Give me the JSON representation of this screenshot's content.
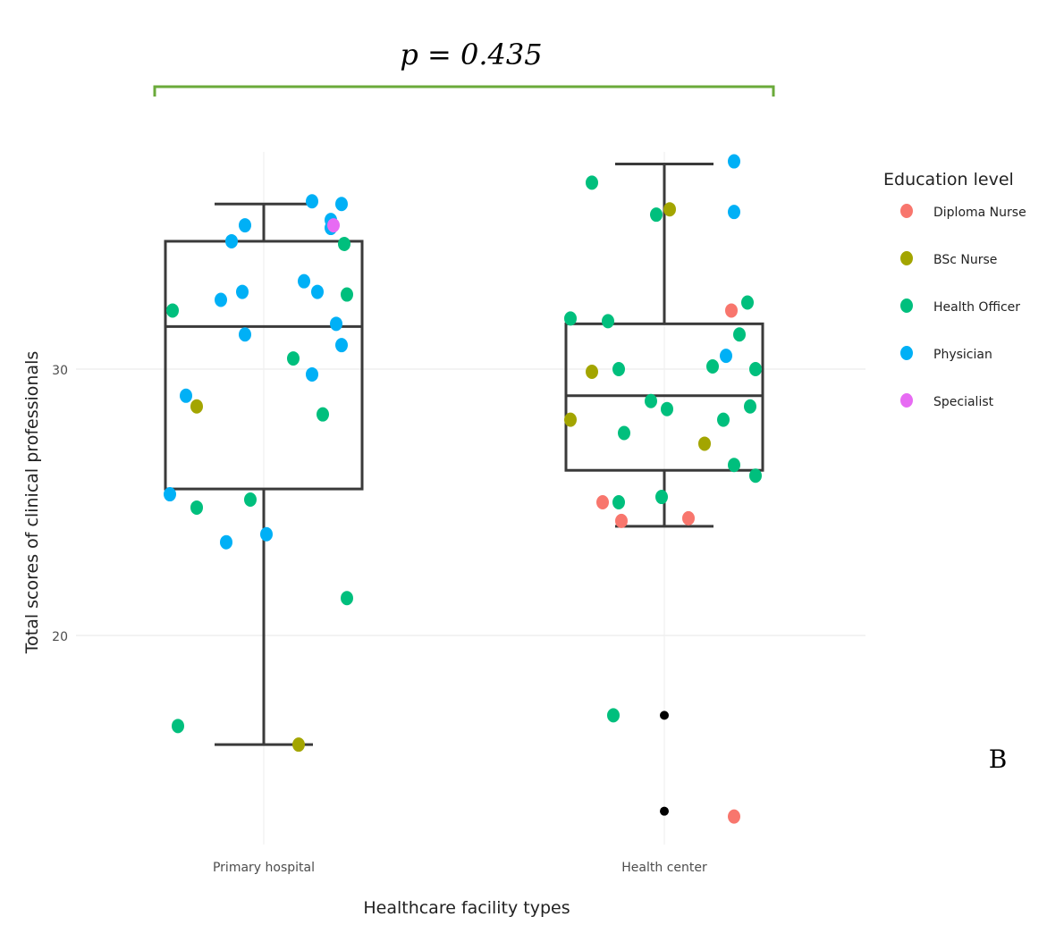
{
  "chart_data": {
    "type": "boxplot",
    "annotation": "p = 0.435",
    "panel_label": "B",
    "xlabel": "Healthcare facility types",
    "ylabel": "Total scores of clinical professionals",
    "categories": [
      "Primary hospital",
      "Health center"
    ],
    "y_ticks": [
      20,
      30
    ],
    "ylim": [
      12,
      38.5
    ],
    "grid": true,
    "legend": {
      "title": "Education level",
      "placement": "right",
      "entries": [
        {
          "name": "Diploma Nurse",
          "color": "#F8766D"
        },
        {
          "name": "BSc Nurse",
          "color": "#A3A500"
        },
        {
          "name": "Health Officer",
          "color": "#00BF7D"
        },
        {
          "name": "Physician",
          "color": "#00B0F6"
        },
        {
          "name": "Specialist",
          "color": "#E76BF3"
        }
      ]
    },
    "boxes": [
      {
        "category": "Primary hospital",
        "whisker_low": 15.9,
        "q1": 25.5,
        "median": 31.6,
        "q3": 34.8,
        "whisker_high": 36.2
      },
      {
        "category": "Health center",
        "whisker_low": 24.1,
        "q1": 26.2,
        "median": 29.0,
        "q3": 31.7,
        "whisker_high": 37.7
      }
    ],
    "outliers": [
      {
        "category": "Health center",
        "y": 17.0
      },
      {
        "category": "Health center",
        "y": 13.4
      }
    ],
    "points": [
      {
        "category": "Primary hospital",
        "jitter": 0.18,
        "y": 36.3,
        "group": "Physician"
      },
      {
        "category": "Primary hospital",
        "jitter": 0.29,
        "y": 36.2,
        "group": "Physician"
      },
      {
        "category": "Primary hospital",
        "jitter": -0.07,
        "y": 35.4,
        "group": "Physician"
      },
      {
        "category": "Primary hospital",
        "jitter": 0.25,
        "y": 35.6,
        "group": "Physician"
      },
      {
        "category": "Primary hospital",
        "jitter": 0.25,
        "y": 35.3,
        "group": "Physician"
      },
      {
        "category": "Primary hospital",
        "jitter": 0.26,
        "y": 35.4,
        "group": "Specialist"
      },
      {
        "category": "Primary hospital",
        "jitter": -0.12,
        "y": 34.8,
        "group": "Physician"
      },
      {
        "category": "Primary hospital",
        "jitter": 0.3,
        "y": 34.7,
        "group": "Health Officer"
      },
      {
        "category": "Primary hospital",
        "jitter": 0.15,
        "y": 33.3,
        "group": "Physician"
      },
      {
        "category": "Primary hospital",
        "jitter": -0.08,
        "y": 32.9,
        "group": "Physician"
      },
      {
        "category": "Primary hospital",
        "jitter": 0.2,
        "y": 32.9,
        "group": "Physician"
      },
      {
        "category": "Primary hospital",
        "jitter": -0.16,
        "y": 32.6,
        "group": "Physician"
      },
      {
        "category": "Primary hospital",
        "jitter": 0.31,
        "y": 32.8,
        "group": "Health Officer"
      },
      {
        "category": "Primary hospital",
        "jitter": -0.34,
        "y": 32.2,
        "group": "Health Officer"
      },
      {
        "category": "Primary hospital",
        "jitter": -0.07,
        "y": 31.3,
        "group": "Physician"
      },
      {
        "category": "Primary hospital",
        "jitter": 0.27,
        "y": 31.7,
        "group": "Physician"
      },
      {
        "category": "Primary hospital",
        "jitter": 0.29,
        "y": 30.9,
        "group": "Physician"
      },
      {
        "category": "Primary hospital",
        "jitter": 0.11,
        "y": 30.4,
        "group": "Health Officer"
      },
      {
        "category": "Primary hospital",
        "jitter": 0.18,
        "y": 29.8,
        "group": "Physician"
      },
      {
        "category": "Primary hospital",
        "jitter": -0.29,
        "y": 29.0,
        "group": "Physician"
      },
      {
        "category": "Primary hospital",
        "jitter": -0.25,
        "y": 28.6,
        "group": "BSc Nurse"
      },
      {
        "category": "Primary hospital",
        "jitter": 0.22,
        "y": 28.3,
        "group": "Health Officer"
      },
      {
        "category": "Primary hospital",
        "jitter": -0.35,
        "y": 25.3,
        "group": "Physician"
      },
      {
        "category": "Primary hospital",
        "jitter": -0.25,
        "y": 24.8,
        "group": "Health Officer"
      },
      {
        "category": "Primary hospital",
        "jitter": -0.05,
        "y": 25.1,
        "group": "Health Officer"
      },
      {
        "category": "Primary hospital",
        "jitter": 0.01,
        "y": 23.8,
        "group": "Physician"
      },
      {
        "category": "Primary hospital",
        "jitter": -0.14,
        "y": 23.5,
        "group": "Physician"
      },
      {
        "category": "Primary hospital",
        "jitter": 0.31,
        "y": 21.4,
        "group": "Health Officer"
      },
      {
        "category": "Primary hospital",
        "jitter": -0.32,
        "y": 16.6,
        "group": "Health Officer"
      },
      {
        "category": "Primary hospital",
        "jitter": 0.13,
        "y": 15.9,
        "group": "BSc Nurse"
      },
      {
        "category": "Health center",
        "jitter": 0.26,
        "y": 37.8,
        "group": "Physician"
      },
      {
        "category": "Health center",
        "jitter": -0.27,
        "y": 37.0,
        "group": "Health Officer"
      },
      {
        "category": "Health center",
        "jitter": 0.02,
        "y": 36.0,
        "group": "BSc Nurse"
      },
      {
        "category": "Health center",
        "jitter": -0.03,
        "y": 35.8,
        "group": "Health Officer"
      },
      {
        "category": "Health center",
        "jitter": 0.26,
        "y": 35.9,
        "group": "Physician"
      },
      {
        "category": "Health center",
        "jitter": 0.31,
        "y": 32.5,
        "group": "Health Officer"
      },
      {
        "category": "Health center",
        "jitter": 0.25,
        "y": 32.2,
        "group": "Diploma Nurse"
      },
      {
        "category": "Health center",
        "jitter": -0.35,
        "y": 31.9,
        "group": "Health Officer"
      },
      {
        "category": "Health center",
        "jitter": -0.21,
        "y": 31.8,
        "group": "Health Officer"
      },
      {
        "category": "Health center",
        "jitter": 0.28,
        "y": 31.3,
        "group": "Health Officer"
      },
      {
        "category": "Health center",
        "jitter": 0.23,
        "y": 30.5,
        "group": "Physician"
      },
      {
        "category": "Health center",
        "jitter": 0.18,
        "y": 30.1,
        "group": "Health Officer"
      },
      {
        "category": "Health center",
        "jitter": 0.34,
        "y": 30.0,
        "group": "Health Officer"
      },
      {
        "category": "Health center",
        "jitter": -0.17,
        "y": 30.0,
        "group": "Health Officer"
      },
      {
        "category": "Health center",
        "jitter": -0.27,
        "y": 29.9,
        "group": "BSc Nurse"
      },
      {
        "category": "Health center",
        "jitter": -0.05,
        "y": 28.8,
        "group": "Health Officer"
      },
      {
        "category": "Health center",
        "jitter": 0.32,
        "y": 28.6,
        "group": "Health Officer"
      },
      {
        "category": "Health center",
        "jitter": 0.01,
        "y": 28.5,
        "group": "Health Officer"
      },
      {
        "category": "Health center",
        "jitter": 0.22,
        "y": 28.1,
        "group": "Health Officer"
      },
      {
        "category": "Health center",
        "jitter": -0.35,
        "y": 28.1,
        "group": "BSc Nurse"
      },
      {
        "category": "Health center",
        "jitter": -0.15,
        "y": 27.6,
        "group": "Health Officer"
      },
      {
        "category": "Health center",
        "jitter": 0.15,
        "y": 27.2,
        "group": "BSc Nurse"
      },
      {
        "category": "Health center",
        "jitter": 0.26,
        "y": 26.4,
        "group": "Health Officer"
      },
      {
        "category": "Health center",
        "jitter": 0.34,
        "y": 26.0,
        "group": "Health Officer"
      },
      {
        "category": "Health center",
        "jitter": -0.01,
        "y": 25.2,
        "group": "Health Officer"
      },
      {
        "category": "Health center",
        "jitter": -0.23,
        "y": 25.0,
        "group": "Diploma Nurse"
      },
      {
        "category": "Health center",
        "jitter": -0.17,
        "y": 25.0,
        "group": "Health Officer"
      },
      {
        "category": "Health center",
        "jitter": -0.16,
        "y": 24.3,
        "group": "Diploma Nurse"
      },
      {
        "category": "Health center",
        "jitter": 0.09,
        "y": 24.4,
        "group": "Diploma Nurse"
      },
      {
        "category": "Health center",
        "jitter": -0.19,
        "y": 17.0,
        "group": "Health Officer"
      },
      {
        "category": "Health center",
        "jitter": 0.26,
        "y": 13.2,
        "group": "Diploma Nurse"
      }
    ]
  }
}
